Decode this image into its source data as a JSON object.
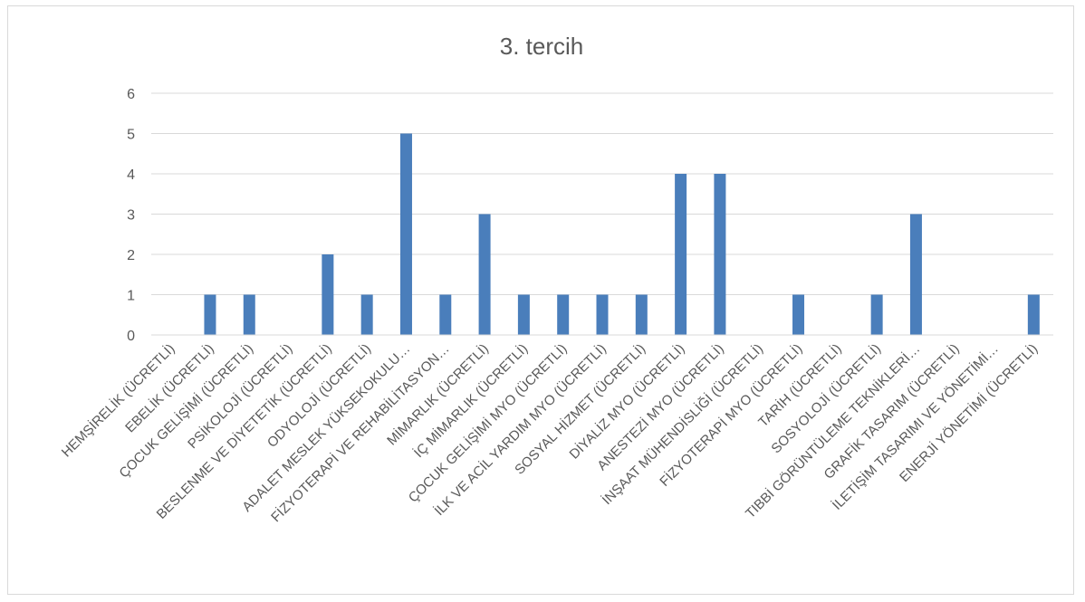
{
  "chart_data": {
    "type": "bar",
    "title": "3. tercih",
    "xlabel": "",
    "ylabel": "",
    "ylim": [
      0,
      6
    ],
    "yticks": [
      0,
      1,
      2,
      3,
      4,
      5,
      6
    ],
    "grid": true,
    "bar_color": "#4a7ebb",
    "categories": [
      "HEMŞİRELİK (ÜCRETLİ)",
      "EBELİK (ÜCRETLİ)",
      "ÇOCUK GELİŞİMİ (ÜCRETLİ)",
      "PSİKOLOJİ (ÜCRETLİ)",
      "BESLENME VE DİYETETİK (ÜCRETLİ)",
      "ODYOLOJİ (ÜCRETLİ)",
      "ADALET MESLEK YÜKSEKOKULU…",
      "FİZYOTERAPİ VE REHABİLİTASYON…",
      "MİMARLIK (ÜCRETLİ)",
      "İÇ MİMARLIK (ÜCRETLİ)",
      "ÇOCUK GELİŞİMİ MYO (ÜCRETLİ)",
      "İLK VE ACİL YARDIM MYO (ÜCRETLİ)",
      "SOSYAL HİZMET (ÜCRETLİ)",
      "DİYALİZ MYO (ÜCRETLİ)",
      "ANESTEZİ MYO (ÜCRETLİ)",
      "İNŞAAT MÜHENDİSLİĞİ (ÜCRETLİ)",
      "FİZYOTERAPİ MYO (ÜCRETLİ)",
      "TARİH (ÜCRETLİ)",
      "SOSYOLOJİ (ÜCRETLİ)",
      "TIBBİ GÖRÜNTÜLEME TEKNİKLERİ…",
      "GRAFİK TASARIM (ÜCRETLİ)",
      "İLETİŞİM TASARIMI VE YÖNETİMİ…",
      "ENERJİ YÖNETİMİ (ÜCRETLİ)"
    ],
    "values": [
      0,
      1,
      1,
      0,
      2,
      1,
      5,
      1,
      3,
      1,
      1,
      1,
      1,
      4,
      4,
      0,
      1,
      0,
      1,
      3,
      0,
      0,
      1
    ]
  }
}
